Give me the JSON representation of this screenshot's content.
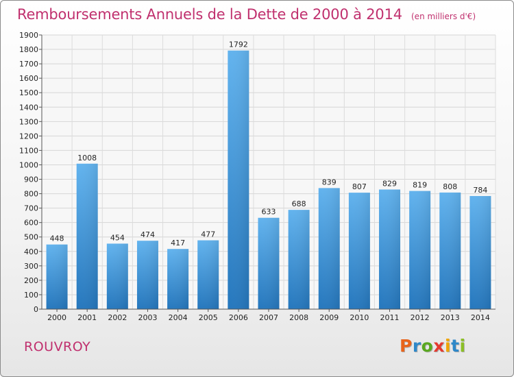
{
  "chart_data": {
    "type": "bar",
    "title": "Remboursements Annuels de la Dette de 2000 à 2014",
    "subtitle": "(en milliers d'€)",
    "categories": [
      "2000",
      "2001",
      "2002",
      "2003",
      "2004",
      "2005",
      "2006",
      "2007",
      "2008",
      "2009",
      "2010",
      "2011",
      "2012",
      "2013",
      "2014"
    ],
    "values": [
      448,
      1008,
      454,
      474,
      417,
      477,
      1792,
      633,
      688,
      839,
      807,
      829,
      819,
      808,
      784
    ],
    "ylim": [
      0,
      1900
    ],
    "yticks": [
      0,
      100,
      200,
      300,
      400,
      500,
      600,
      700,
      800,
      900,
      1000,
      1100,
      1200,
      1300,
      1400,
      1500,
      1600,
      1700,
      1800,
      1900
    ],
    "xlabel": "",
    "ylabel": "",
    "grid": true,
    "bar_color": "#3a8fd6"
  },
  "footer": {
    "commune": "ROUVROY",
    "logo_letters": [
      "P",
      "r",
      "o",
      "x",
      "i",
      "t",
      "i"
    ],
    "logo_colors": [
      "#e8641b",
      "#2e88c9",
      "#5aa820",
      "#e43a2f",
      "#f0a500",
      "#2e88c9",
      "#8cbf26"
    ]
  }
}
